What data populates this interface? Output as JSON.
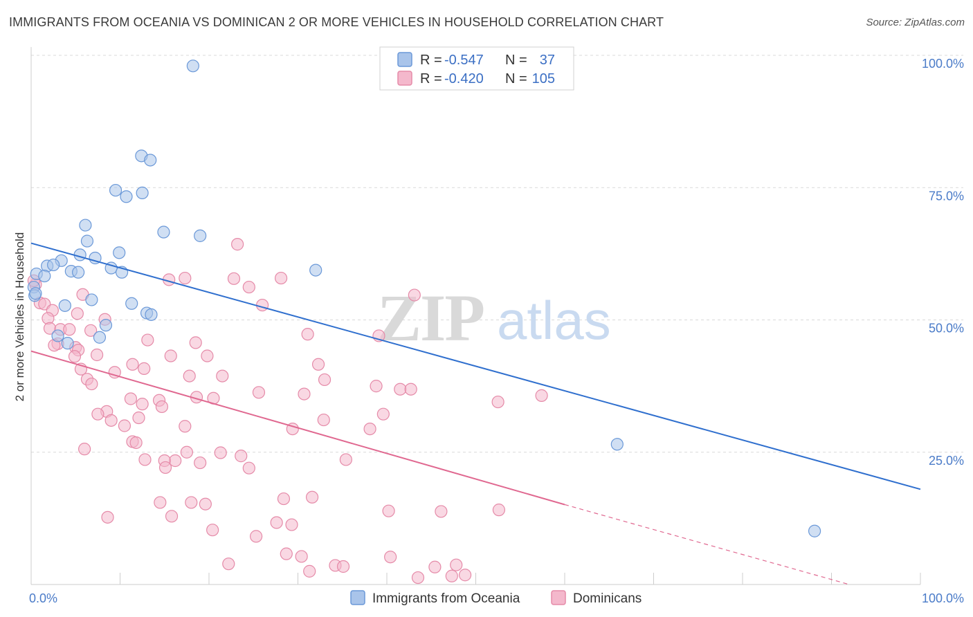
{
  "title": "IMMIGRANTS FROM OCEANIA VS DOMINICAN 2 OR MORE VEHICLES IN HOUSEHOLD CORRELATION CHART",
  "source": "Source: ZipAtlas.com",
  "watermark": {
    "zip": "ZIP",
    "atlas": "atlas"
  },
  "colors": {
    "blue_fill": "#a9c4ea",
    "blue_stroke": "#6a98d8",
    "blue_line": "#2f6fce",
    "pink_fill": "#f4b8cc",
    "pink_stroke": "#e58aa8",
    "pink_line": "#e06890",
    "grid": "#d8d8d8",
    "axis_tick_text": "#4a7bc8"
  },
  "legend": {
    "rows": [
      {
        "r_label": "R =",
        "r_value": "-0.547",
        "n_label": "N =",
        "n_value": "37",
        "color": "blue"
      },
      {
        "r_label": "R =",
        "r_value": "-0.420",
        "n_label": "N =",
        "n_value": "105",
        "color": "pink"
      }
    ]
  },
  "bottom_legend": [
    {
      "label": "Immigrants from Oceania",
      "color": "blue"
    },
    {
      "label": "Dominicans",
      "color": "pink"
    }
  ],
  "chart_data": {
    "type": "scatter",
    "title": "IMMIGRANTS FROM OCEANIA VS DOMINICAN 2 OR MORE VEHICLES IN HOUSEHOLD CORRELATION CHART",
    "xlabel": "",
    "ylabel": "2 or more Vehicles in Household",
    "xlim": [
      0,
      100
    ],
    "ylim": [
      0,
      100
    ],
    "x_tick_labels": [
      {
        "value": 0,
        "label": "0.0%"
      },
      {
        "value": 100,
        "label": "100.0%"
      }
    ],
    "y_tick_labels": [
      {
        "value": 100,
        "label": "100.0%"
      },
      {
        "value": 75,
        "label": "75.0%"
      },
      {
        "value": 50,
        "label": "50.0%"
      },
      {
        "value": 25,
        "label": "25.0%"
      }
    ],
    "series": [
      {
        "name": "Immigrants from Oceania",
        "color": "blue",
        "points": [
          [
            18.2,
            98.0
          ],
          [
            12.4,
            81.0
          ],
          [
            13.4,
            80.2
          ],
          [
            9.5,
            74.5
          ],
          [
            10.7,
            73.3
          ],
          [
            12.5,
            74.0
          ],
          [
            6.1,
            67.9
          ],
          [
            14.9,
            66.6
          ],
          [
            19.0,
            65.9
          ],
          [
            6.3,
            64.9
          ],
          [
            5.5,
            62.3
          ],
          [
            7.2,
            61.7
          ],
          [
            9.9,
            62.7
          ],
          [
            3.4,
            61.2
          ],
          [
            1.8,
            60.2
          ],
          [
            2.5,
            60.4
          ],
          [
            4.5,
            59.2
          ],
          [
            5.3,
            59.0
          ],
          [
            9.0,
            59.8
          ],
          [
            10.2,
            59.0
          ],
          [
            0.6,
            58.7
          ],
          [
            1.5,
            58.3
          ],
          [
            32.0,
            59.4
          ],
          [
            0.3,
            56.2
          ],
          [
            0.4,
            54.6
          ],
          [
            6.8,
            53.8
          ],
          [
            11.3,
            53.1
          ],
          [
            3.8,
            52.7
          ],
          [
            13.0,
            51.3
          ],
          [
            13.5,
            51.0
          ],
          [
            8.4,
            49.0
          ],
          [
            7.7,
            46.7
          ],
          [
            4.1,
            45.6
          ],
          [
            3.0,
            47.0
          ],
          [
            65.9,
            26.5
          ],
          [
            88.1,
            10.1
          ],
          [
            0.5,
            55.0
          ]
        ],
        "trend": {
          "x0": 0,
          "y0": 64.5,
          "x1": 100,
          "y1": 18.0
        }
      },
      {
        "name": "Dominicans",
        "color": "pink",
        "points": [
          [
            23.2,
            64.3
          ],
          [
            17.3,
            57.9
          ],
          [
            22.8,
            57.8
          ],
          [
            15.5,
            57.6
          ],
          [
            28.1,
            57.9
          ],
          [
            24.5,
            56.2
          ],
          [
            43.1,
            54.7
          ],
          [
            0.5,
            56.7
          ],
          [
            1.0,
            53.2
          ],
          [
            1.5,
            53.0
          ],
          [
            2.4,
            51.8
          ],
          [
            26.0,
            52.8
          ],
          [
            8.3,
            50.1
          ],
          [
            1.9,
            50.3
          ],
          [
            2.1,
            48.4
          ],
          [
            3.3,
            48.2
          ],
          [
            4.3,
            48.2
          ],
          [
            31.1,
            47.3
          ],
          [
            39.1,
            47.0
          ],
          [
            13.1,
            46.2
          ],
          [
            18.5,
            45.7
          ],
          [
            3.0,
            45.5
          ],
          [
            5.0,
            44.8
          ],
          [
            2.6,
            45.2
          ],
          [
            5.3,
            44.3
          ],
          [
            7.4,
            43.4
          ],
          [
            15.7,
            43.2
          ],
          [
            11.4,
            41.6
          ],
          [
            19.8,
            43.2
          ],
          [
            32.3,
            41.6
          ],
          [
            12.7,
            40.8
          ],
          [
            4.9,
            43.1
          ],
          [
            5.6,
            40.7
          ],
          [
            9.4,
            40.1
          ],
          [
            17.8,
            39.4
          ],
          [
            33.0,
            38.7
          ],
          [
            21.5,
            39.4
          ],
          [
            6.3,
            38.8
          ],
          [
            6.8,
            37.9
          ],
          [
            38.8,
            37.5
          ],
          [
            41.5,
            36.9
          ],
          [
            42.7,
            36.9
          ],
          [
            25.6,
            36.3
          ],
          [
            18.6,
            35.4
          ],
          [
            11.2,
            35.1
          ],
          [
            12.5,
            34.1
          ],
          [
            20.5,
            35.2
          ],
          [
            30.7,
            36.0
          ],
          [
            14.4,
            34.8
          ],
          [
            52.5,
            34.5
          ],
          [
            57.4,
            35.7
          ],
          [
            14.7,
            33.6
          ],
          [
            8.5,
            32.7
          ],
          [
            7.5,
            32.2
          ],
          [
            12.1,
            31.5
          ],
          [
            9.0,
            31.0
          ],
          [
            39.6,
            32.2
          ],
          [
            10.5,
            30.0
          ],
          [
            32.9,
            31.1
          ],
          [
            17.3,
            29.9
          ],
          [
            29.4,
            29.4
          ],
          [
            38.1,
            29.4
          ],
          [
            11.4,
            27.0
          ],
          [
            11.8,
            26.8
          ],
          [
            6.0,
            25.6
          ],
          [
            17.5,
            25.0
          ],
          [
            21.3,
            24.9
          ],
          [
            12.8,
            23.6
          ],
          [
            16.2,
            23.4
          ],
          [
            15.0,
            23.4
          ],
          [
            23.6,
            24.3
          ],
          [
            35.4,
            23.6
          ],
          [
            19.0,
            23.0
          ],
          [
            15.1,
            22.1
          ],
          [
            24.5,
            22.0
          ],
          [
            28.4,
            16.2
          ],
          [
            14.5,
            15.5
          ],
          [
            18.0,
            15.5
          ],
          [
            19.6,
            15.2
          ],
          [
            31.6,
            16.5
          ],
          [
            40.2,
            13.9
          ],
          [
            52.6,
            14.1
          ],
          [
            8.6,
            12.7
          ],
          [
            15.8,
            12.9
          ],
          [
            27.6,
            11.7
          ],
          [
            29.3,
            11.3
          ],
          [
            20.4,
            10.3
          ],
          [
            25.3,
            9.1
          ],
          [
            46.1,
            13.8
          ],
          [
            30.4,
            5.3
          ],
          [
            28.7,
            5.8
          ],
          [
            22.2,
            3.9
          ],
          [
            34.2,
            3.6
          ],
          [
            35.1,
            3.4
          ],
          [
            40.4,
            5.2
          ],
          [
            31.3,
            2.5
          ],
          [
            47.3,
            1.6
          ],
          [
            47.8,
            3.7
          ],
          [
            45.4,
            3.3
          ],
          [
            48.8,
            1.8
          ],
          [
            43.5,
            1.3
          ],
          [
            0.3,
            57.4
          ],
          [
            5.8,
            54.8
          ],
          [
            5.2,
            51.2
          ],
          [
            6.7,
            48.0
          ]
        ],
        "trend": {
          "x0": 0,
          "y0": 44.1,
          "x1": 60,
          "y1": 15.1
        },
        "trend_dashed": {
          "x0": 60,
          "y0": 15.1,
          "x1": 92,
          "y1": 0
        }
      }
    ]
  }
}
